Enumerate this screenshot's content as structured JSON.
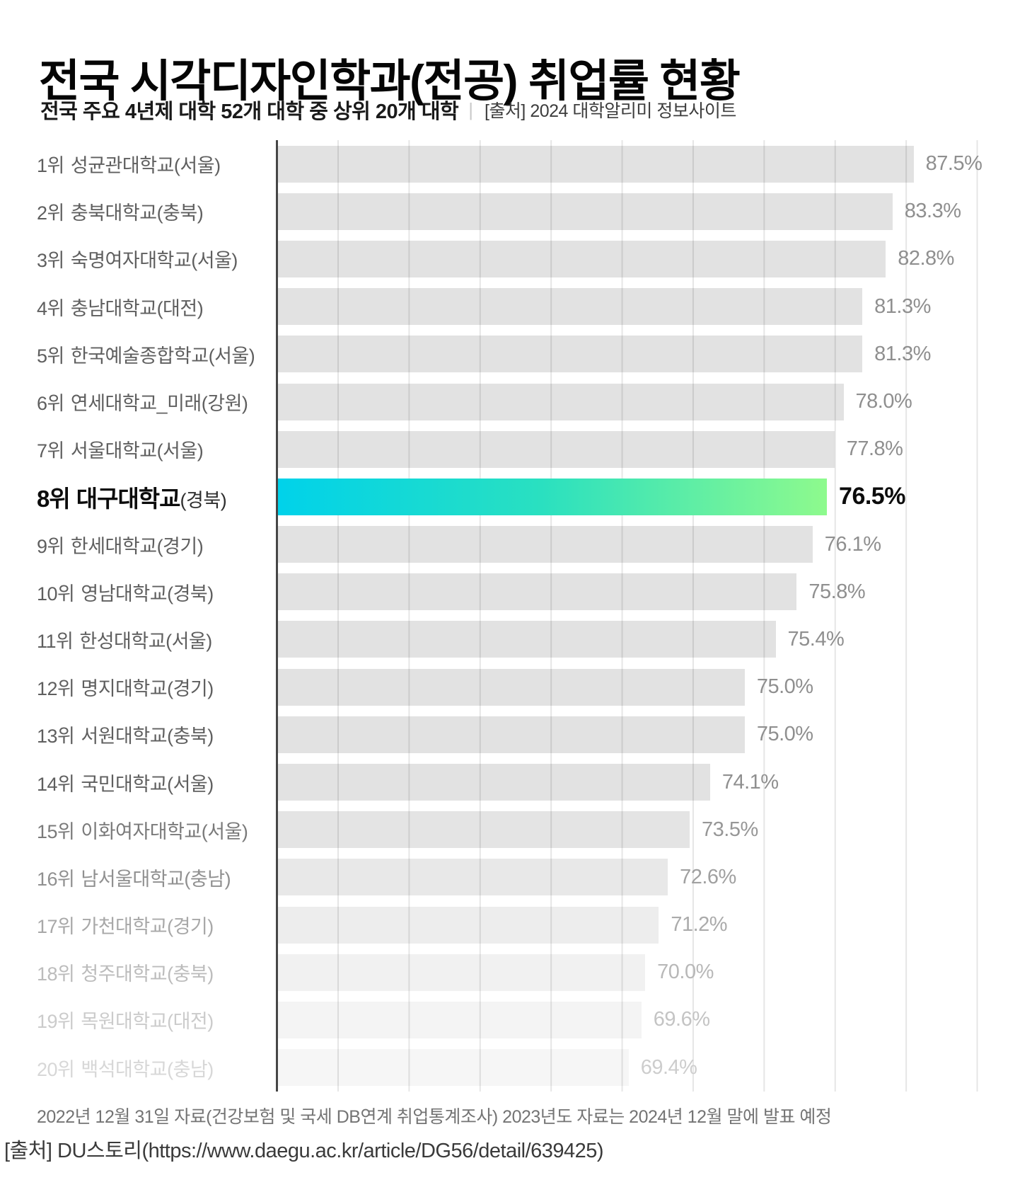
{
  "page": {
    "title": "전국 시각디자인학과(전공) 취업률 현황",
    "subtitle_bold": "전국 주요 4년제 대학 52개 대학 중 상위 20개 대학",
    "subtitle_separator": "|",
    "subtitle_source": "[출처] 2024 대학알리미 정보사이트",
    "footnote": "2022년 12월 31일 자료(건강보험 및 국세 DB연계 취업통계조사) 2023년도 자료는 2024년 12월 말에 발표 예정",
    "source_line": "[출처] DU스토리(https://www.daegu.ac.kr/article/DG56/detail/639425)"
  },
  "chart_data": {
    "type": "bar",
    "orientation": "horizontal",
    "title": "전국 시각디자인학과(전공) 취업률 현황",
    "unit": "%",
    "grid": true,
    "gridline_count": 10,
    "axis_color": "#464646",
    "gridline_color": "#e6e6e6",
    "highlight_index": 7,
    "highlight_gradient": [
      "#00d2ea",
      "#2ae0c0",
      "#8efa8d"
    ],
    "rows": [
      {
        "rank": "1위",
        "name": "성균관대학교",
        "region": "(서울)",
        "value": 87.5,
        "value_label": "87.5%",
        "width_pct": 84.3,
        "highlight": false,
        "bar_color": "rgba(0,0,0,0.115)",
        "label_color": "#5f5f5f",
        "pct_color": "#8f8f8f"
      },
      {
        "rank": "2위",
        "name": "충북대학교",
        "region": "(충북)",
        "value": 83.3,
        "value_label": "83.3%",
        "width_pct": 81.5,
        "highlight": false,
        "bar_color": "rgba(0,0,0,0.115)",
        "label_color": "#5f5f5f",
        "pct_color": "#8f8f8f"
      },
      {
        "rank": "3위",
        "name": "숙명여자대학교",
        "region": "(서울)",
        "value": 82.8,
        "value_label": "82.8%",
        "width_pct": 80.6,
        "highlight": false,
        "bar_color": "rgba(0,0,0,0.115)",
        "label_color": "#5f5f5f",
        "pct_color": "#8f8f8f"
      },
      {
        "rank": "4위",
        "name": "충남대학교",
        "region": "(대전)",
        "value": 81.3,
        "value_label": "81.3%",
        "width_pct": 77.5,
        "highlight": false,
        "bar_color": "rgba(0,0,0,0.115)",
        "label_color": "#5f5f5f",
        "pct_color": "#8f8f8f"
      },
      {
        "rank": "5위",
        "name": "한국예술종합학교",
        "region": "(서울)",
        "value": 81.3,
        "value_label": "81.3%",
        "width_pct": 77.5,
        "highlight": false,
        "bar_color": "rgba(0,0,0,0.115)",
        "label_color": "#5f5f5f",
        "pct_color": "#8f8f8f"
      },
      {
        "rank": "6위",
        "name": "연세대학교_미래",
        "region": "(강원)",
        "value": 78.0,
        "value_label": "78.0%",
        "width_pct": 75.0,
        "highlight": false,
        "bar_color": "rgba(0,0,0,0.115)",
        "label_color": "#5f5f5f",
        "pct_color": "#8f8f8f"
      },
      {
        "rank": "7위",
        "name": "서울대학교",
        "region": "(서울)",
        "value": 77.8,
        "value_label": "77.8%",
        "width_pct": 73.8,
        "highlight": false,
        "bar_color": "rgba(0,0,0,0.115)",
        "label_color": "#5f5f5f",
        "pct_color": "#8f8f8f"
      },
      {
        "rank": "8위",
        "name": "대구대학교",
        "region": "(경북)",
        "value": 76.5,
        "value_label": "76.5%",
        "width_pct": 72.8,
        "highlight": true,
        "bar_color": "",
        "label_color": "#0c0c0c",
        "pct_color": "#0c0c0c"
      },
      {
        "rank": "9위",
        "name": "한세대학교",
        "region": "(경기)",
        "value": 76.1,
        "value_label": "76.1%",
        "width_pct": 70.9,
        "highlight": false,
        "bar_color": "rgba(0,0,0,0.115)",
        "label_color": "#5f5f5f",
        "pct_color": "#8f8f8f"
      },
      {
        "rank": "10위",
        "name": "영남대학교",
        "region": "(경북)",
        "value": 75.8,
        "value_label": "75.8%",
        "width_pct": 68.8,
        "highlight": false,
        "bar_color": "rgba(0,0,0,0.115)",
        "label_color": "#5f5f5f",
        "pct_color": "#8f8f8f"
      },
      {
        "rank": "11위",
        "name": "한성대학교",
        "region": "(서울)",
        "value": 75.4,
        "value_label": "75.4%",
        "width_pct": 66.0,
        "highlight": false,
        "bar_color": "rgba(0,0,0,0.115)",
        "label_color": "#5f5f5f",
        "pct_color": "#8f8f8f"
      },
      {
        "rank": "12위",
        "name": "명지대학교",
        "region": "(경기)",
        "value": 75.0,
        "value_label": "75.0%",
        "width_pct": 61.9,
        "highlight": false,
        "bar_color": "rgba(0,0,0,0.115)",
        "label_color": "#5f5f5f",
        "pct_color": "#8f8f8f"
      },
      {
        "rank": "13위",
        "name": "서원대학교",
        "region": "(충북)",
        "value": 75.0,
        "value_label": "75.0%",
        "width_pct": 61.9,
        "highlight": false,
        "bar_color": "rgba(0,0,0,0.115)",
        "label_color": "#5f5f5f",
        "pct_color": "#8f8f8f"
      },
      {
        "rank": "14위",
        "name": "국민대학교",
        "region": "(서울)",
        "value": 74.1,
        "value_label": "74.1%",
        "width_pct": 57.3,
        "highlight": false,
        "bar_color": "rgba(0,0,0,0.115)",
        "label_color": "#5f5f5f",
        "pct_color": "#8f8f8f"
      },
      {
        "rank": "15위",
        "name": "이화여자대학교",
        "region": "(서울)",
        "value": 73.5,
        "value_label": "73.5%",
        "width_pct": 54.6,
        "highlight": false,
        "bar_color": "rgba(0,0,0,0.105)",
        "label_color": "#7a7a7a",
        "pct_color": "#979797"
      },
      {
        "rank": "16위",
        "name": "남서울대학교",
        "region": "(충남)",
        "value": 72.6,
        "value_label": "72.6%",
        "width_pct": 51.7,
        "highlight": false,
        "bar_color": "rgba(0,0,0,0.09)",
        "label_color": "#909090",
        "pct_color": "#a0a0a0"
      },
      {
        "rank": "17위",
        "name": "가천대학교",
        "region": "(경기)",
        "value": 71.2,
        "value_label": "71.2%",
        "width_pct": 50.5,
        "highlight": false,
        "bar_color": "rgba(0,0,0,0.07)",
        "label_color": "#a8a8a8",
        "pct_color": "#ababab"
      },
      {
        "rank": "18위",
        "name": "청주대학교",
        "region": "(충북)",
        "value": 70.0,
        "value_label": "70.0%",
        "width_pct": 48.7,
        "highlight": false,
        "bar_color": "rgba(0,0,0,0.055)",
        "label_color": "#bcbcbc",
        "pct_color": "#b8b8b8"
      },
      {
        "rank": "19위",
        "name": "목원대학교",
        "region": "(대전)",
        "value": 69.6,
        "value_label": "69.6%",
        "width_pct": 48.2,
        "highlight": false,
        "bar_color": "rgba(0,0,0,0.045)",
        "label_color": "#cbcbcb",
        "pct_color": "#c4c4c4"
      },
      {
        "rank": "20위",
        "name": "백석대학교",
        "region": "(충남)",
        "value": 69.4,
        "value_label": "69.4%",
        "width_pct": 46.5,
        "highlight": false,
        "bar_color": "rgba(0,0,0,0.035)",
        "label_color": "#d7d7d7",
        "pct_color": "#cdcdcd"
      }
    ]
  }
}
